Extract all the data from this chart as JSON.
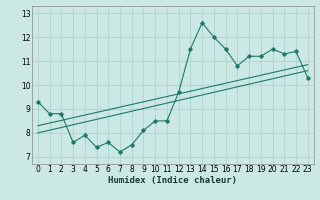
{
  "xlabel": "Humidex (Indice chaleur)",
  "background_color": "#cce8e4",
  "grid_color": "#aad4cc",
  "line_color": "#1a7a6a",
  "xlim": [
    -0.5,
    23.5
  ],
  "ylim": [
    6.7,
    13.3
  ],
  "yticks": [
    7,
    8,
    9,
    10,
    11,
    12,
    13
  ],
  "xticks": [
    0,
    1,
    2,
    3,
    4,
    5,
    6,
    7,
    8,
    9,
    10,
    11,
    12,
    13,
    14,
    15,
    16,
    17,
    18,
    19,
    20,
    21,
    22,
    23
  ],
  "curve1_x": [
    0,
    1,
    2,
    3,
    4,
    5,
    6,
    7,
    8,
    9,
    10,
    11,
    12,
    13,
    14,
    15,
    16,
    17,
    18,
    19,
    20,
    21,
    22,
    23
  ],
  "curve1_y": [
    9.3,
    8.8,
    8.8,
    7.6,
    7.9,
    7.4,
    7.6,
    7.2,
    7.5,
    8.1,
    8.5,
    8.5,
    9.7,
    11.5,
    12.6,
    12.0,
    11.5,
    10.8,
    11.2,
    11.2,
    11.5,
    11.3,
    11.4,
    10.3
  ],
  "trend1_x": [
    0,
    23
  ],
  "trend1_y": [
    8.0,
    10.6
  ],
  "trend2_x": [
    0,
    23
  ],
  "trend2_y": [
    8.3,
    10.85
  ]
}
